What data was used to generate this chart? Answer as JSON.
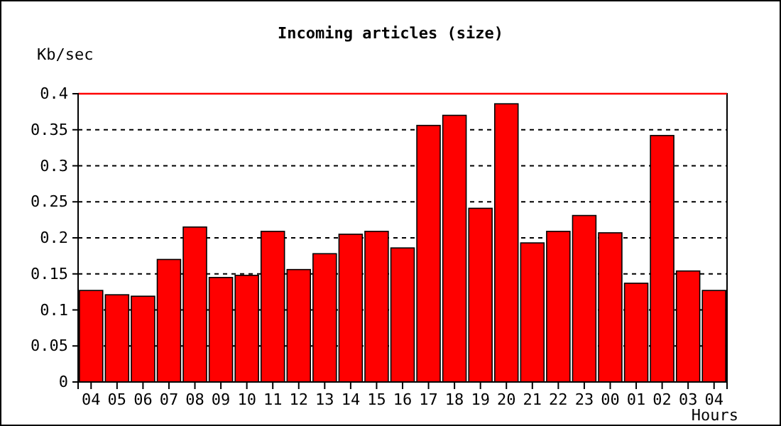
{
  "chart_data": {
    "type": "bar",
    "title": "Incoming articles (size)",
    "xlabel": "Hours",
    "ylabel": "Kb/sec",
    "categories": [
      "04",
      "05",
      "06",
      "07",
      "08",
      "09",
      "10",
      "11",
      "12",
      "13",
      "14",
      "15",
      "16",
      "17",
      "18",
      "19",
      "20",
      "21",
      "22",
      "23",
      "00",
      "01",
      "02",
      "03",
      "04"
    ],
    "values": [
      0.127,
      0.121,
      0.119,
      0.17,
      0.215,
      0.145,
      0.148,
      0.209,
      0.156,
      0.178,
      0.205,
      0.209,
      0.186,
      0.356,
      0.37,
      0.241,
      0.386,
      0.193,
      0.209,
      0.231,
      0.207,
      0.137,
      0.342,
      0.154,
      0.127
    ],
    "color": "#ff0000",
    "ylim": [
      0,
      0.4
    ],
    "yticks": [
      0,
      {
        "value": 0.05,
        "label": "0.05"
      },
      {
        "value": 0.1,
        "label": "0.1"
      },
      {
        "value": 0.15,
        "label": "0.15"
      },
      {
        "value": 0.2,
        "label": "0.2"
      },
      {
        "value": 0.25,
        "label": "0.25"
      },
      {
        "value": 0.3,
        "label": "0.3"
      },
      {
        "value": 0.35,
        "label": "0.35"
      },
      {
        "value": 0.4,
        "label": "0.4"
      }
    ],
    "grid": "y",
    "ref_lines": [
      {
        "axis": "y",
        "value": 0.4,
        "color": "#ff0000"
      }
    ]
  }
}
